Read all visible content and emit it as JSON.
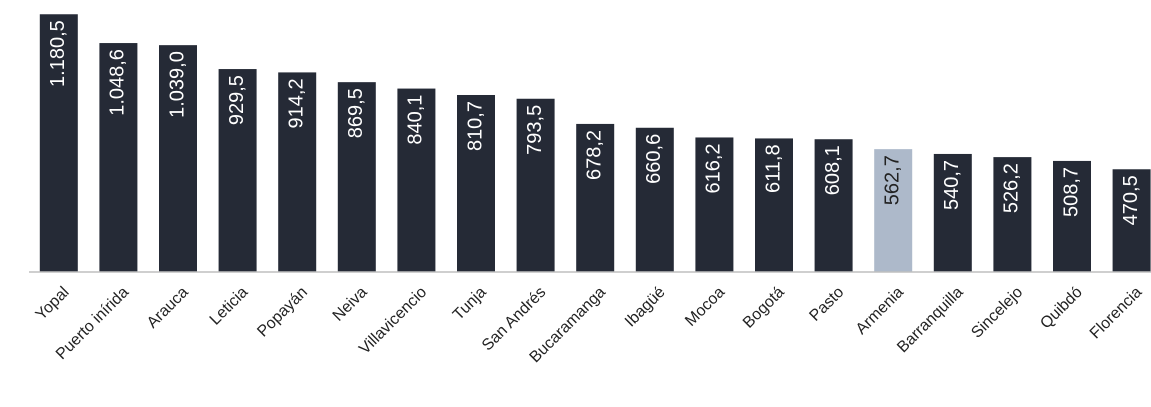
{
  "chart_data": {
    "type": "bar",
    "categories": [
      "Yopal",
      "Puerto inírida",
      "Arauca",
      "Leticia",
      "Popayán",
      "Neiva",
      "Villavicencio",
      "Tunja",
      "San Andrés",
      "Bucaramanga",
      "Ibagüé",
      "Mocoa",
      "Bogotá",
      "Pasto",
      "Armenia",
      "Barranquilla",
      "Sincelejo",
      "Quibdó",
      "Florencia"
    ],
    "values": [
      1180.5,
      1048.6,
      1039.0,
      929.5,
      914.2,
      869.5,
      840.1,
      810.7,
      793.5,
      678.2,
      660.6,
      616.2,
      611.8,
      608.1,
      562.7,
      540.7,
      526.2,
      508.7,
      470.5
    ],
    "value_labels": [
      "1.180,5",
      "1.048,6",
      "1.039,0",
      "929,5",
      "914,2",
      "869,5",
      "840,1",
      "810,7",
      "793,5",
      "678,2",
      "660,6",
      "616,2",
      "611,8",
      "608,1",
      "562,7",
      "540,7",
      "526,2",
      "508,7",
      "470,5"
    ],
    "colors": [
      "#252a36",
      "#252a36",
      "#252a36",
      "#252a36",
      "#252a36",
      "#252a36",
      "#252a36",
      "#252a36",
      "#252a36",
      "#252a36",
      "#252a36",
      "#252a36",
      "#252a36",
      "#252a36",
      "#adb9ca",
      "#252a36",
      "#252a36",
      "#252a36",
      "#252a36"
    ],
    "ylim": [
      0,
      1200
    ]
  }
}
